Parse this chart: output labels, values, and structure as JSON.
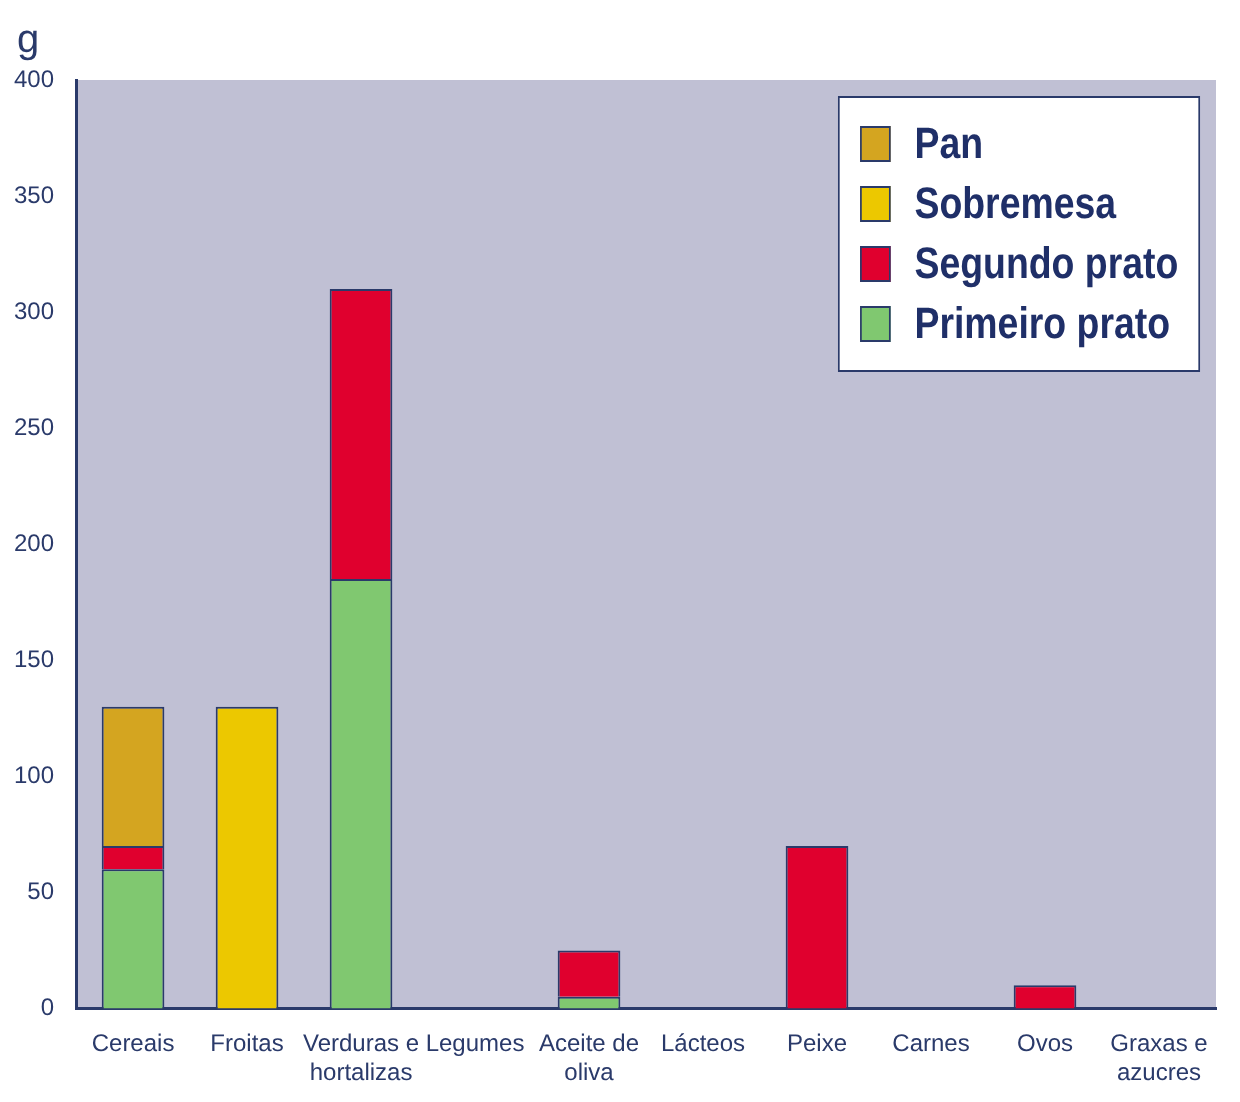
{
  "chart_data": {
    "type": "bar",
    "stacked": true,
    "ylabel": "g",
    "categories": [
      "Cereais",
      "Froitas",
      "Verduras e hortalizas",
      "Legumes",
      "Aceite de oliva",
      "Lácteos",
      "Peixe",
      "Carnes",
      "Ovos",
      "Graxas e azucres"
    ],
    "series": [
      {
        "name": "Primeiro prato",
        "color": "#80c870",
        "values": [
          60,
          null,
          185,
          null,
          5,
          null,
          null,
          null,
          null,
          null
        ]
      },
      {
        "name": "Segundo prato",
        "color": "#e0002e",
        "values": [
          10,
          null,
          125,
          null,
          20,
          null,
          70,
          null,
          10,
          null
        ]
      },
      {
        "name": "Sobremesa",
        "color": "#ecc800",
        "values": [
          null,
          130,
          null,
          null,
          null,
          null,
          null,
          null,
          null,
          null
        ]
      },
      {
        "name": "Pan",
        "color": "#d4a520",
        "values": [
          60,
          null,
          null,
          null,
          null,
          null,
          null,
          null,
          null,
          null
        ]
      }
    ],
    "ylim": [
      0,
      400
    ],
    "yticks": [
      0,
      50,
      100,
      150,
      200,
      250,
      300,
      350,
      400
    ],
    "grid": false,
    "legend": "top right"
  }
}
